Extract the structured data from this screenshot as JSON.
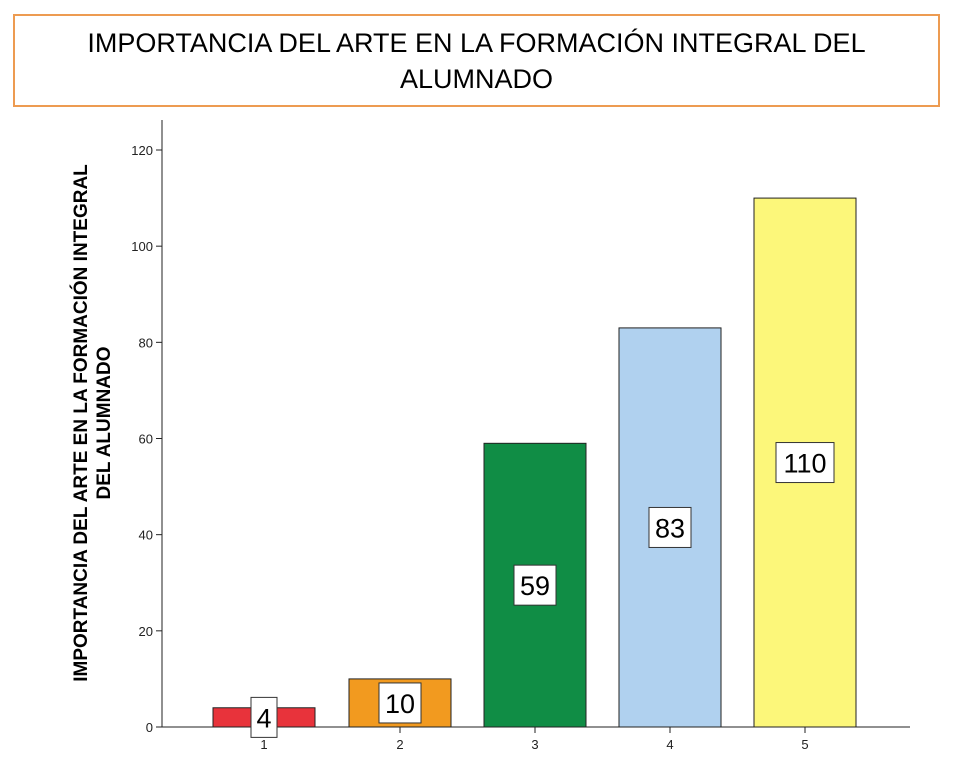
{
  "title": "IMPORTANCIA DEL ARTE EN LA FORMACIÓN INTEGRAL DEL ALUMNADO",
  "colors": {
    "title_border": "#ED9B51",
    "bars": [
      "#E8333B",
      "#F29A1F",
      "#108D45",
      "#B0D1EF",
      "#FCF77A"
    ],
    "bar_stroke": "#222222",
    "axis": "#222222"
  },
  "chart_data": {
    "type": "bar",
    "categories": [
      "1",
      "2",
      "3",
      "4",
      "5"
    ],
    "values": [
      4,
      10,
      59,
      83,
      110
    ],
    "data_labels": [
      "4",
      "10",
      "59",
      "83",
      "110"
    ],
    "ylabel_lines": [
      "IMPORTANCIA DEL ARTE EN LA FORMACIÓN INTEGRAL",
      "DEL ALUMNADO"
    ],
    "xlabel": "",
    "yticks": [
      0,
      20,
      40,
      60,
      80,
      100,
      120
    ],
    "ylim": [
      0,
      120
    ],
    "grid": false
  }
}
